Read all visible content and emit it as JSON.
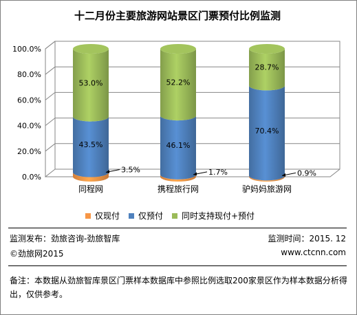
{
  "chart_data": {
    "type": "bar",
    "stacked": true,
    "title": "十二月份主要旅游网站景区门票预付比例监测",
    "categories": [
      "同程网",
      "携程旅行网",
      "驴妈妈旅游网"
    ],
    "ylim": [
      0,
      100
    ],
    "y_ticks": [
      "0.0%",
      "20.0%",
      "40.0%",
      "60.0%",
      "80.0%",
      "100.0%"
    ],
    "grid": true,
    "legend_position": "bottom",
    "series": [
      {
        "name": "仅现付",
        "values": [
          3.5,
          1.7,
          0.9
        ],
        "labels": [
          "3.5%",
          "1.7%",
          "0.9%"
        ],
        "color": "#f79646"
      },
      {
        "name": "仅预付",
        "values": [
          43.5,
          46.1,
          70.4
        ],
        "labels": [
          "43.5%",
          "46.1%",
          "70.4%"
        ],
        "color": "#4f81bd"
      },
      {
        "name": "同时支持现付+预付",
        "values": [
          53.0,
          52.2,
          28.7
        ],
        "labels": [
          "53.0%",
          "52.2%",
          "28.7%"
        ],
        "color": "#9bbb59"
      }
    ]
  },
  "footer": {
    "publisher": "监测发布：劲旅咨询-劲旅智库",
    "time": "监测时间：2015. 12",
    "copyright": "©劲旅网2015",
    "website": "www.ctcnn.com",
    "note": "备注：本数据从劲旅智库景区门票样本数据库中参照比例选取200家景区作为样本数据分析得出，仅供参考。"
  }
}
